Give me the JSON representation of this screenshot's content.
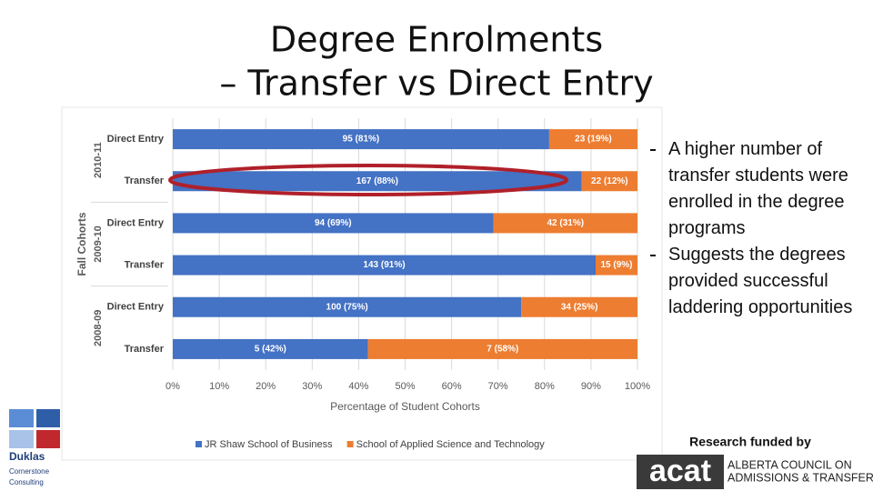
{
  "slide": {
    "title": [
      "Degree Enrolments",
      "– Transfer vs Direct Entry"
    ],
    "bullets": [
      "A higher number of transfer students were enrolled in the degree programs",
      "Suggests the degrees provided successful laddering opportunities"
    ],
    "funding_note": "Research funded by",
    "logo_left": [
      "Duklas",
      "Cornerstone",
      "Consulting"
    ],
    "logo_right": {
      "mark": "acat",
      "lines": [
        "ALBERTA COUNCIL ON",
        "ADMISSIONS & TRANSFER"
      ]
    }
  },
  "chart_data": {
    "type": "bar",
    "orientation": "horizontal",
    "stacked": true,
    "x_label": "Percentage of Student Cohorts",
    "y_label": "Fall Cohorts",
    "groups": [
      "2010-11",
      "2009-10",
      "2008-09"
    ],
    "categories": [
      "Direct Entry",
      "Transfer",
      "Direct Entry",
      "Transfer",
      "Direct Entry",
      "Transfer"
    ],
    "series": [
      {
        "name": "JR Shaw School of Business",
        "color": "#4472c4",
        "values": [
          81,
          88,
          69,
          91,
          75,
          42
        ],
        "value_labels": [
          "95 (81%)",
          "167 (88%)",
          "94 (69%)",
          "143 (91%)",
          "100 (75%)",
          "5 (42%)"
        ]
      },
      {
        "name": "School of Applied Science and Technology",
        "color": "#ed7d31",
        "values": [
          19,
          12,
          31,
          9,
          25,
          58
        ],
        "value_labels": [
          "23 (19%)",
          "22 (12%)",
          "42 (31%)",
          "15 (9%)",
          "34 (25%)",
          "7 (58%)"
        ]
      }
    ],
    "xlim": [
      0,
      100
    ],
    "xticks": [
      {
        "value": 0,
        "label": "0%"
      },
      {
        "value": 10,
        "label": "10%"
      },
      {
        "value": 20,
        "label": "20%"
      },
      {
        "value": 30,
        "label": "30%"
      },
      {
        "value": 40,
        "label": "40%"
      },
      {
        "value": 50,
        "label": "50%"
      },
      {
        "value": 60,
        "label": "60%"
      },
      {
        "value": 70,
        "label": "70%"
      },
      {
        "value": 80,
        "label": "80%"
      },
      {
        "value": 90,
        "label": "90%"
      },
      {
        "value": 100,
        "label": "100%"
      }
    ],
    "grid": true,
    "legend": "bottom"
  }
}
